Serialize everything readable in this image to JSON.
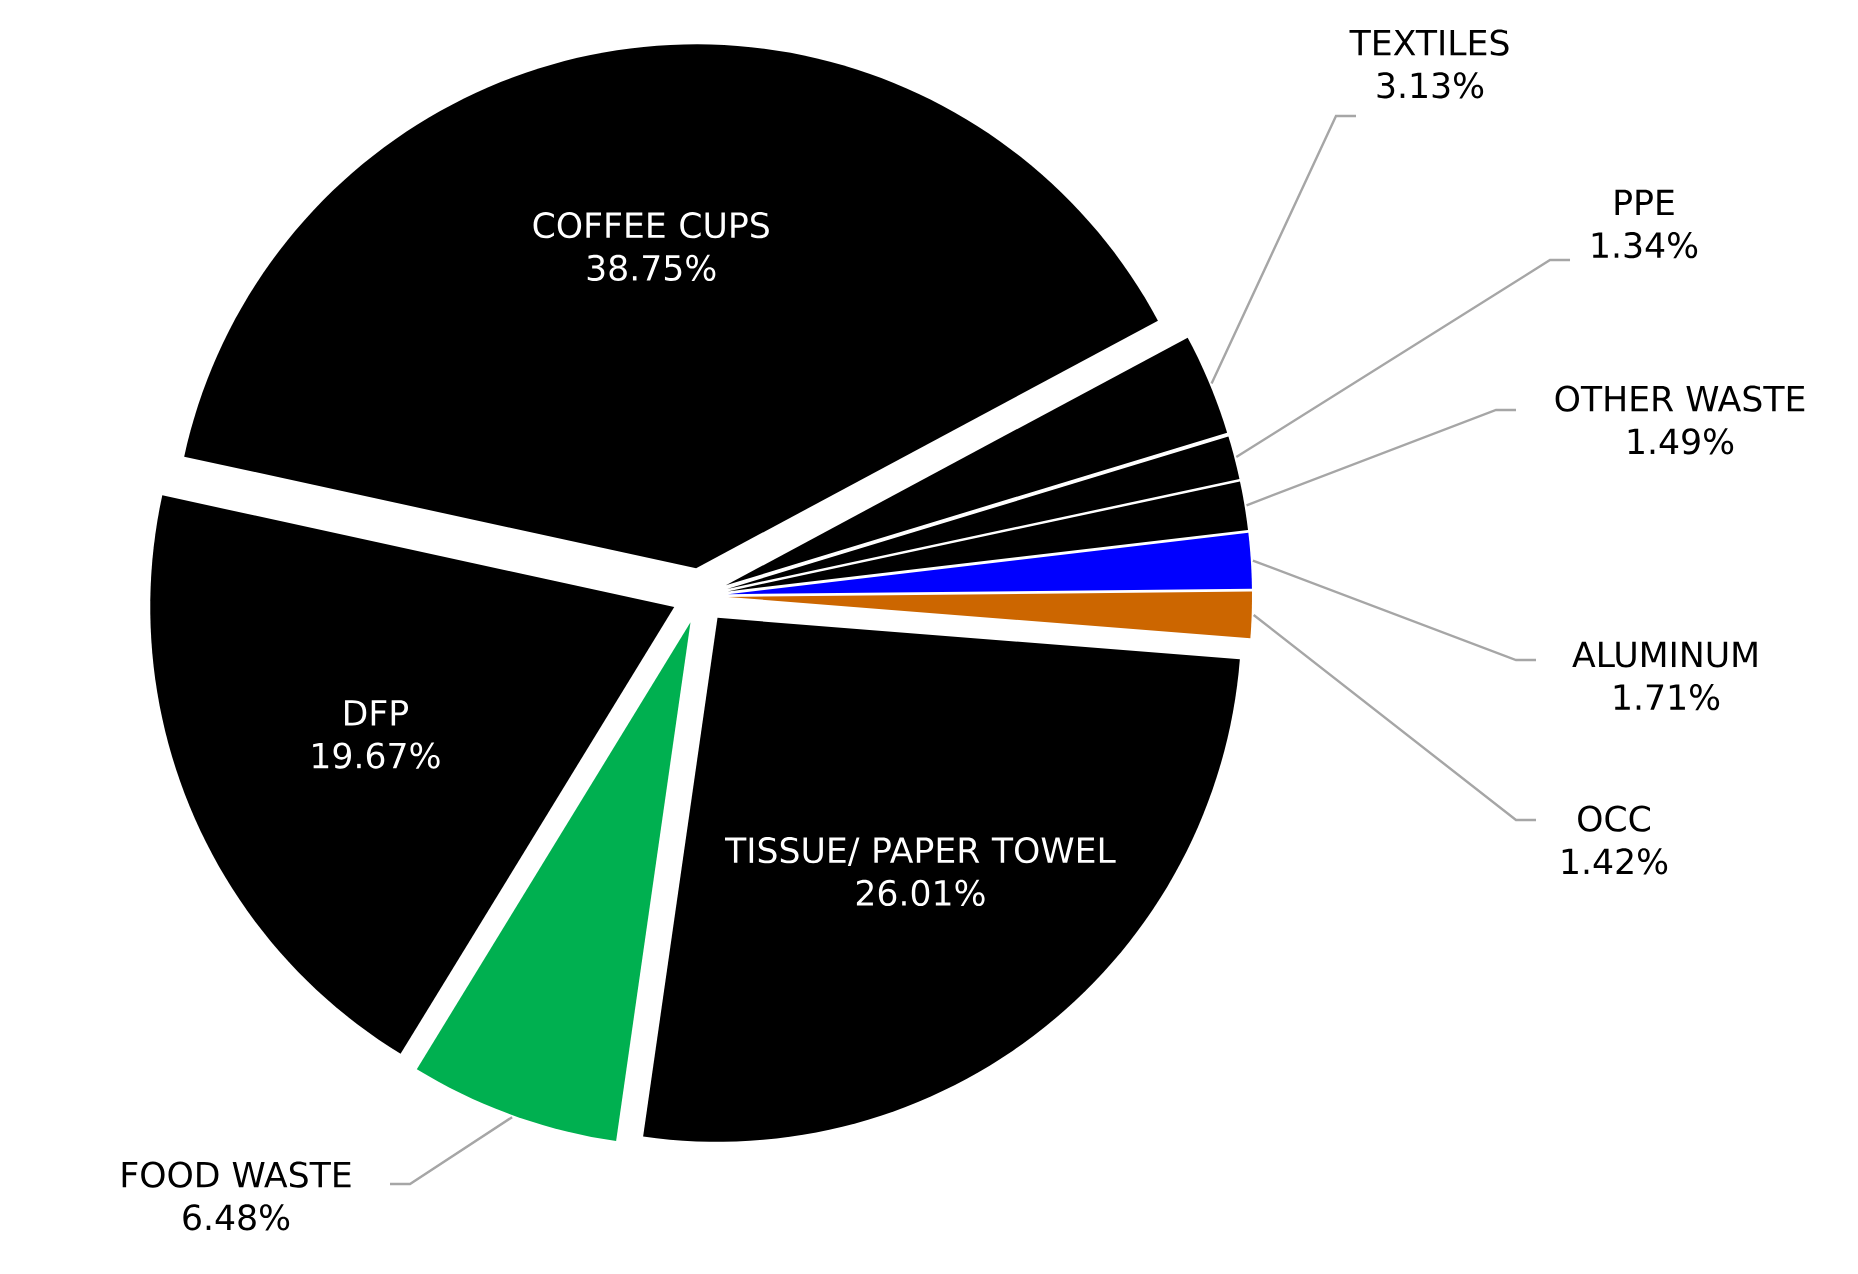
{
  "chart_data": {
    "type": "pie",
    "categories": [
      "COFFEE CUPS",
      "TEXTILES",
      "PPE",
      "OTHER WASTE",
      "ALUMINUM",
      "OCC",
      "TISSUE/ PAPER TOWEL",
      "FOOD WASTE",
      "DFP"
    ],
    "values": [
      38.75,
      3.13,
      1.34,
      1.49,
      1.71,
      1.42,
      26.01,
      6.48,
      19.67
    ],
    "value_labels": [
      "38.75%",
      "3.13%",
      "1.34%",
      "1.49%",
      "1.71%",
      "1.42%",
      "26.01%",
      "6.48%",
      "19.67%"
    ],
    "colors": [
      "#000000",
      "#000000",
      "#000000",
      "#000000",
      "#0000ff",
      "#cc6600",
      "#000000",
      "#00b050",
      "#000000"
    ]
  }
}
